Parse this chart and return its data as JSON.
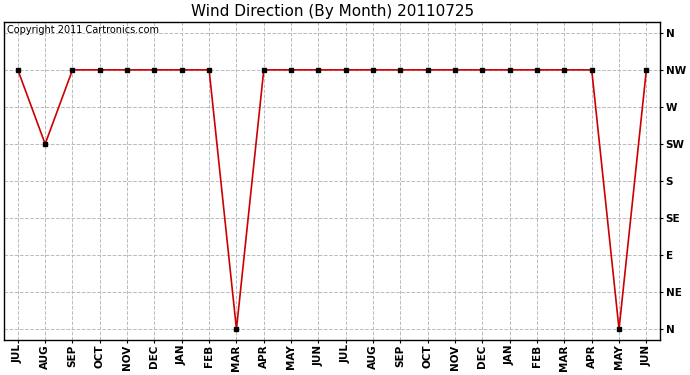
{
  "title": "Wind Direction (By Month) 20110725",
  "copyright_text": "Copyright 2011 Cartronics.com",
  "x_labels": [
    "JUL",
    "AUG",
    "SEP",
    "OCT",
    "NOV",
    "DEC",
    "JAN",
    "FEB",
    "MAR",
    "APR",
    "MAY",
    "JUN",
    "JUL",
    "AUG",
    "SEP",
    "OCT",
    "NOV",
    "DEC",
    "JAN",
    "FEB",
    "MAR",
    "APR",
    "MAY",
    "JUN"
  ],
  "y_labels_top_to_bottom": [
    "N",
    "NW",
    "W",
    "SW",
    "S",
    "SE",
    "E",
    "NE",
    "N"
  ],
  "y_tick_positions": [
    8,
    7,
    6,
    5,
    4,
    3,
    2,
    1,
    0
  ],
  "y_values": [
    7,
    5,
    7,
    7,
    7,
    7,
    7,
    7,
    0,
    7,
    7,
    7,
    7,
    7,
    7,
    7,
    7,
    7,
    7,
    7,
    7,
    7,
    0,
    7
  ],
  "line_color": "#cc0000",
  "marker": "s",
  "marker_size": 3,
  "marker_color": "#000000",
  "plot_bg_color": "#ffffff",
  "fig_bg_color": "#ffffff",
  "grid_color": "#bbbbbb",
  "title_fontsize": 11,
  "tick_fontsize": 7.5,
  "copyright_fontsize": 7,
  "fig_width": 6.9,
  "fig_height": 3.75,
  "dpi": 100,
  "ylim_min": -0.3,
  "ylim_max": 8.3
}
